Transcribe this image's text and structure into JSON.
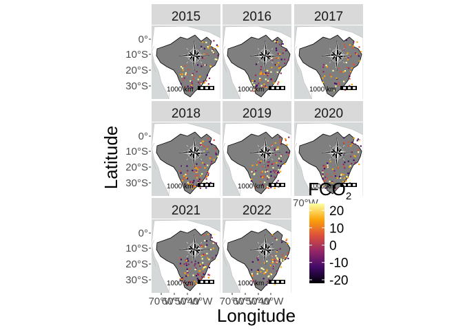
{
  "figure": {
    "x_axis_title": "Longitude",
    "y_axis_title": "Latitude",
    "x_tick_labels": [
      "70°W",
      "60°W",
      "50°W",
      "40°W"
    ],
    "y_tick_labels": [
      "0°",
      "10°S",
      "20°S",
      "30°S"
    ],
    "scale_bar_label": "1000 km"
  },
  "legend": {
    "title": "FCO",
    "title_subscript": "2",
    "ticks": [
      "20",
      "10",
      "0",
      "-10",
      "-20"
    ],
    "range": [
      -22,
      24
    ],
    "tick_values": [
      20,
      10,
      0,
      -10,
      -20
    ]
  },
  "colors": {
    "panel_background": "#d4d8d8",
    "strip_background": "#d9d9d9",
    "brazil_fill": "#7f7f7f",
    "gradient": [
      "#000004",
      "#420a68",
      "#932667",
      "#dd513a",
      "#fca50a",
      "#fcffa4"
    ]
  },
  "chart_data": {
    "type": "map-facets",
    "facets": [
      {
        "label": "2015",
        "density": 0.55,
        "seed": 11
      },
      {
        "label": "2016",
        "density": 0.6,
        "seed": 23
      },
      {
        "label": "2017",
        "density": 0.45,
        "seed": 37
      },
      {
        "label": "2018",
        "density": 0.8,
        "seed": 41
      },
      {
        "label": "2019",
        "density": 0.75,
        "seed": 53
      },
      {
        "label": "2020",
        "density": 0.7,
        "seed": 67
      },
      {
        "label": "2021",
        "density": 0.85,
        "seed": 71
      },
      {
        "label": "2022",
        "density": 0.65,
        "seed": 89
      }
    ],
    "x_ticks": [
      -70,
      -60,
      -50,
      -40
    ],
    "y_ticks": [
      0,
      -10,
      -20,
      -30
    ],
    "xlim": [
      -75,
      -33
    ],
    "ylim": [
      -35,
      6
    ]
  }
}
